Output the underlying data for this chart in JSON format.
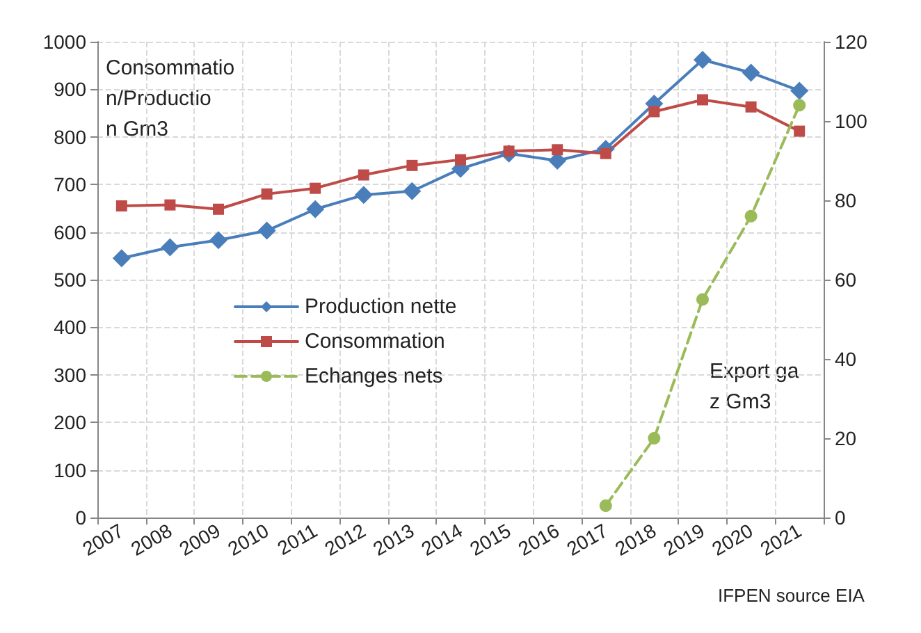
{
  "chart_data": {
    "type": "line",
    "categories": [
      "2007",
      "2008",
      "2009",
      "2010",
      "2011",
      "2012",
      "2013",
      "2014",
      "2015",
      "2016",
      "2017",
      "2018",
      "2019",
      "2020",
      "2021"
    ],
    "series": [
      {
        "name": "Production nette",
        "color": "#4a7ebb",
        "marker": "diamond",
        "values": [
          545,
          568,
          583,
          603,
          648,
          678,
          686,
          733,
          765,
          750,
          775,
          870,
          962,
          935,
          897
        ]
      },
      {
        "name": "Consommation",
        "color": "#be4b48",
        "marker": "square",
        "values": [
          655,
          657,
          648,
          680,
          692,
          720,
          740,
          752,
          770,
          773,
          765,
          853,
          878,
          863,
          812
        ]
      },
      {
        "name": "Echanges nets",
        "color": "#9bbb59",
        "marker": "circle",
        "line_style": "dashed",
        "axis": "y2",
        "values": [
          null,
          null,
          null,
          null,
          null,
          null,
          null,
          null,
          null,
          null,
          3,
          20,
          55,
          76,
          104
        ]
      }
    ],
    "ylim": [
      0,
      1000
    ],
    "yticks": [
      0,
      100,
      200,
      300,
      400,
      500,
      600,
      700,
      800,
      900,
      1000
    ],
    "y2lim": [
      0,
      120
    ],
    "y2ticks": [
      0,
      20,
      40,
      60,
      80,
      100,
      120
    ],
    "grid": true,
    "legend": "center",
    "annotations": [
      "Consommation/Production Gm3",
      "Export gaz Gm3",
      "IFPEN source EIA"
    ]
  }
}
